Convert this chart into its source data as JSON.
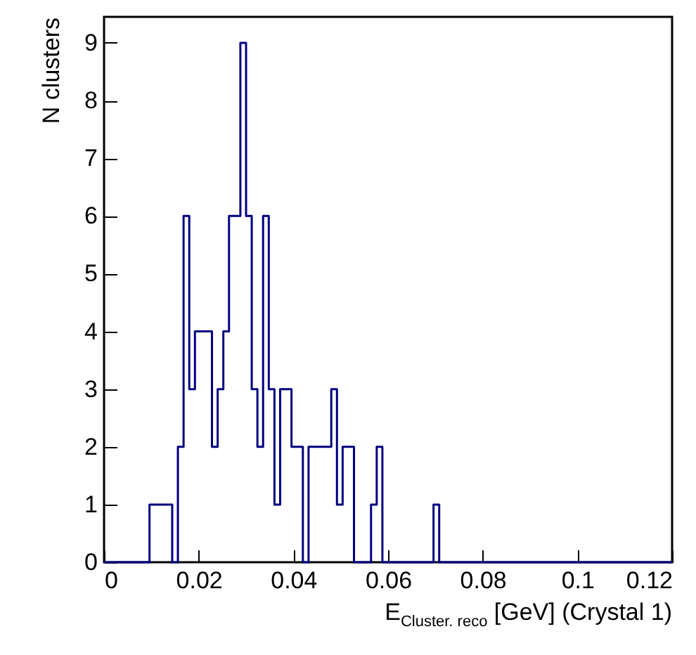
{
  "chart_data": {
    "type": "histogram",
    "xlabel": "E$_{Cluster. reco}$ [GeV] (Crystal 1)",
    "ylabel": "N clusters",
    "bins": [
      0,
      0.0012,
      0.0024,
      0.0036,
      0.0048,
      0.006,
      0.0072,
      0.0084,
      0.0096,
      0.0108,
      0.012,
      0.0132,
      0.0144,
      0.0156,
      0.0168,
      0.018,
      0.0192,
      0.0204,
      0.0216,
      0.0228,
      0.024,
      0.0252,
      0.0264,
      0.0276,
      0.0288,
      0.03,
      0.0312,
      0.0324,
      0.0336,
      0.0348,
      0.036,
      0.0372,
      0.0384,
      0.0396,
      0.0408,
      0.042,
      0.0432,
      0.0444,
      0.0456,
      0.0468,
      0.048,
      0.0492,
      0.0504,
      0.0516,
      0.0528,
      0.054,
      0.0552,
      0.0564,
      0.0576,
      0.0588,
      0.06,
      0.0612,
      0.0624,
      0.0636,
      0.0648,
      0.066,
      0.0672,
      0.0684,
      0.0696,
      0.0708,
      0.072,
      0.0732,
      0.0744,
      0.0756,
      0.0768,
      0.078,
      0.0792,
      0.0804,
      0.0816,
      0.0828,
      0.084,
      0.0852,
      0.0864,
      0.0876,
      0.0888,
      0.09,
      0.0912,
      0.0924,
      0.0936,
      0.0948,
      0.096,
      0.0972,
      0.0984,
      0.0996,
      0.1008,
      0.102,
      0.1032,
      0.1044,
      0.1056,
      0.1068,
      0.108,
      0.1092,
      0.1104,
      0.1116,
      0.1128,
      0.114,
      0.1152,
      0.1164,
      0.1176,
      0.1188,
      0.12
    ],
    "values": [
      0,
      0,
      0,
      0,
      0,
      0,
      0,
      0,
      1,
      1,
      1,
      1,
      0,
      2,
      6,
      3,
      4,
      4,
      4,
      2,
      3,
      4,
      6,
      6,
      9,
      6,
      3,
      2,
      6,
      3,
      1,
      3,
      3,
      2,
      2,
      0,
      2,
      2,
      2,
      2,
      3,
      1,
      2,
      2,
      0,
      0,
      0,
      1,
      2,
      0,
      0,
      0,
      0,
      0,
      0,
      0,
      0,
      0,
      1,
      0,
      0,
      0,
      0,
      0,
      0,
      0,
      0,
      0,
      0,
      0,
      0,
      0,
      0,
      0,
      0,
      0,
      0,
      0,
      0,
      0,
      0,
      0,
      0,
      0,
      0,
      0,
      0,
      0,
      0,
      0,
      0,
      0,
      0,
      0,
      0,
      0,
      0,
      0,
      0,
      0
    ],
    "color": "#000080",
    "xlim": [
      0,
      0.12
    ],
    "ylim": [
      0,
      9.45
    ],
    "xticks": [
      0,
      0.02,
      0.04,
      0.06,
      0.08,
      0.1,
      0.12
    ],
    "yticks": [
      0,
      1,
      2,
      3,
      4,
      5,
      6,
      7,
      8,
      9
    ]
  }
}
